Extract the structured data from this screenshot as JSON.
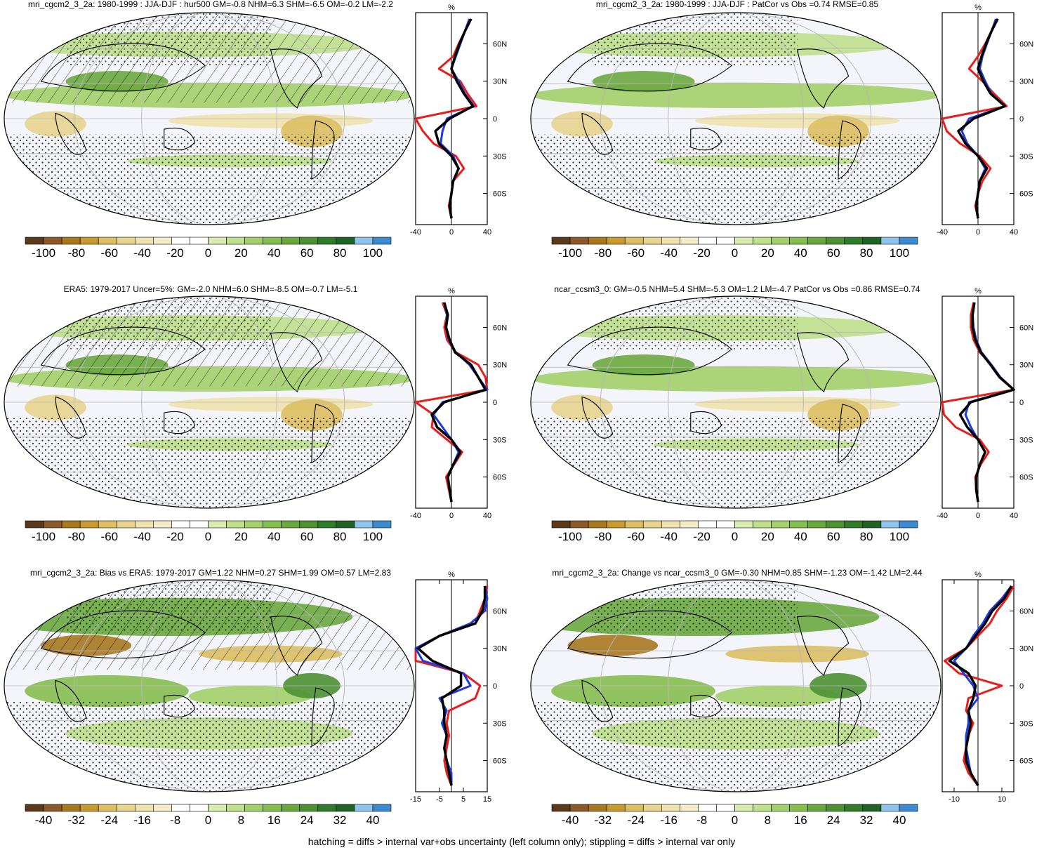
{
  "footer": "hatching = diffs > internal var+obs uncertainty (left column only); stippling = diffs > internal var only",
  "palette_abs": [
    "#5a3a1a",
    "#8c5a2a",
    "#a9781f",
    "#c99a2f",
    "#dcbf62",
    "#e8d48e",
    "#efe2ad",
    "#f4ebc8",
    "#ffffff",
    "#ffffff",
    "#d9ecb0",
    "#bfe08c",
    "#a3d06a",
    "#86be4f",
    "#6aa83f",
    "#4d9133",
    "#2f7a2b",
    "#1f6425",
    "#8ec5ec",
    "#3c8ad0"
  ],
  "palette_diff": [
    "#5a3a1a",
    "#8c5a2a",
    "#a9781f",
    "#c99a2f",
    "#dcbf62",
    "#e8d48e",
    "#efe2ad",
    "#f4ebc8",
    "#ffffff",
    "#ffffff",
    "#d9ecb0",
    "#bfe08c",
    "#a3d06a",
    "#86be4f",
    "#6aa83f",
    "#4d9133",
    "#2f7a2b",
    "#1f6425",
    "#8ec5ec",
    "#3c8ad0"
  ],
  "colors": {
    "red": "#e81e1e",
    "blue": "#1e3adc",
    "black": "#000000",
    "grid": "#b8b8b8"
  },
  "chart_data": [
    {
      "type": "heatmap",
      "id": "p1",
      "title": "mri_cgcm2_3_2a: 1980-1999 : JJA-DJF : hur500 GM=-0.8 NHM=6.3 SHM=-6.5 OM=-0.2 LM=-2.2",
      "colorbar_labels": [
        "-100",
        "-80",
        "-60",
        "-40",
        "-20",
        "0",
        "20",
        "40",
        "60",
        "80",
        "100"
      ],
      "profile": {
        "unit": "%",
        "xticks": [
          "-40",
          "0",
          "40"
        ],
        "xlim": [
          -40,
          40
        ],
        "yticks": [
          "60N",
          "30N",
          "0",
          "30S",
          "60S"
        ],
        "lat": [
          80,
          70,
          60,
          50,
          40,
          30,
          20,
          10,
          0,
          -10,
          -20,
          -30,
          -40,
          -50,
          -60,
          -70,
          -80
        ],
        "series": [
          {
            "color": "red",
            "values": [
              22,
              15,
              8,
              2,
              -14,
              10,
              18,
              28,
              -40,
              -32,
              -20,
              5,
              14,
              2,
              0,
              -3,
              0
            ]
          },
          {
            "color": "blue",
            "values": [
              20,
              15,
              10,
              5,
              0,
              8,
              15,
              25,
              -5,
              -10,
              -12,
              2,
              8,
              2,
              0,
              -2,
              0
            ]
          },
          {
            "color": "black",
            "values": [
              22,
              15,
              9,
              4,
              0,
              6,
              14,
              24,
              -2,
              -18,
              -14,
              0,
              8,
              2,
              0,
              -2,
              0
            ]
          }
        ]
      }
    },
    {
      "type": "heatmap",
      "id": "p2",
      "title": "mri_cgcm2_3_2a: 1980-1999 : JJA-DJF : PatCor vs Obs =0.74 RMSE=0.85",
      "colorbar_labels": [
        "-100",
        "-80",
        "-60",
        "-40",
        "-20",
        "0",
        "20",
        "40",
        "60",
        "80",
        "100"
      ],
      "profile": {
        "unit": "%",
        "xticks": [
          "-40",
          "0",
          "40"
        ],
        "xlim": [
          -40,
          40
        ],
        "yticks": [
          "60N",
          "30N",
          "0",
          "30S",
          "60S"
        ],
        "lat": [
          80,
          70,
          60,
          50,
          40,
          30,
          20,
          10,
          0,
          -10,
          -20,
          -30,
          -40,
          -50,
          -60,
          -70,
          -80
        ],
        "series": [
          {
            "color": "red",
            "values": [
              22,
              15,
              8,
              0,
              -10,
              5,
              18,
              32,
              -40,
              -35,
              -20,
              2,
              14,
              5,
              0,
              -3,
              0
            ]
          },
          {
            "color": "blue",
            "values": [
              20,
              15,
              10,
              5,
              2,
              8,
              15,
              30,
              -10,
              -18,
              -12,
              0,
              8,
              2,
              0,
              -2,
              0
            ]
          },
          {
            "color": "black",
            "values": [
              22,
              15,
              9,
              4,
              0,
              6,
              14,
              30,
              -5,
              -22,
              -14,
              0,
              10,
              2,
              0,
              -2,
              0
            ]
          }
        ]
      }
    },
    {
      "type": "heatmap",
      "id": "p3",
      "title": "ERA5: 1979-2017 Uncer=5%: GM=-2.0 NHM=6.0 SHM=-8.5 OM=-0.7 LM=-5.1",
      "colorbar_labels": [
        "-100",
        "-80",
        "-60",
        "-40",
        "-20",
        "0",
        "20",
        "40",
        "60",
        "80",
        "100"
      ],
      "profile": {
        "unit": "%",
        "xticks": [
          "-40",
          "0",
          "40"
        ],
        "xlim": [
          -40,
          40
        ],
        "yticks": [
          "60N",
          "30N",
          "0",
          "30S",
          "60S"
        ],
        "lat": [
          80,
          70,
          60,
          50,
          40,
          30,
          20,
          10,
          0,
          -10,
          -20,
          -30,
          -40,
          -50,
          -60,
          -70,
          -80
        ],
        "series": [
          {
            "color": "red",
            "values": [
              -10,
              -5,
              -8,
              -5,
              5,
              30,
              38,
              42,
              -40,
              -20,
              -22,
              -5,
              12,
              3,
              -6,
              -3,
              0
            ]
          },
          {
            "color": "blue",
            "values": [
              -8,
              -5,
              -6,
              -3,
              5,
              20,
              30,
              40,
              -10,
              -20,
              -10,
              0,
              8,
              2,
              -4,
              -2,
              0
            ]
          },
          {
            "color": "black",
            "values": [
              -8,
              -4,
              -6,
              -2,
              4,
              22,
              30,
              38,
              -8,
              -22,
              -16,
              0,
              10,
              2,
              -4,
              -2,
              0
            ]
          }
        ]
      }
    },
    {
      "type": "heatmap",
      "id": "p4",
      "title": "ncar_ccsm3_0: GM=-0.5 NHM=5.4 SHM=-5.3 OM=1.2 LM=-4.7 PatCor vs Obs =0.86 RMSE=0.74",
      "colorbar_labels": [
        "-100",
        "-80",
        "-60",
        "-40",
        "-20",
        "0",
        "20",
        "40",
        "60",
        "80",
        "100"
      ],
      "profile": {
        "unit": "%",
        "xticks": [
          "-40",
          "0",
          "40"
        ],
        "xlim": [
          -40,
          40
        ],
        "yticks": [
          "60N",
          "30N",
          "0",
          "30S",
          "60S"
        ],
        "lat": [
          80,
          70,
          60,
          50,
          40,
          30,
          20,
          10,
          0,
          -10,
          -20,
          -30,
          -40,
          -50,
          -60,
          -70,
          -80
        ],
        "series": [
          {
            "color": "red",
            "values": [
              -5,
              -8,
              -8,
              -5,
              2,
              15,
              25,
              40,
              -40,
              -38,
              -25,
              2,
              12,
              3,
              -3,
              -2,
              0
            ]
          },
          {
            "color": "blue",
            "values": [
              -4,
              -6,
              -5,
              -2,
              4,
              15,
              25,
              40,
              -10,
              -14,
              -8,
              0,
              8,
              2,
              -2,
              -2,
              0
            ]
          },
          {
            "color": "black",
            "values": [
              -4,
              -6,
              -6,
              -3,
              3,
              14,
              24,
              40,
              -8,
              -20,
              -12,
              0,
              8,
              2,
              -2,
              -2,
              0
            ]
          }
        ]
      }
    },
    {
      "type": "heatmap",
      "id": "p5",
      "title": "mri_cgcm2_3_2a: Bias vs ERA5: 1979-2017 GM=1.22 NHM=0.27 SHM=1.99 OM=0.57 LM=2.83",
      "colorbar_labels": [
        "-40",
        "-32",
        "-24",
        "-16",
        "-8",
        "0",
        "8",
        "16",
        "24",
        "32",
        "40"
      ],
      "profile": {
        "unit": "%",
        "xticks": [
          "-15",
          "-5",
          "5",
          "15"
        ],
        "xlim": [
          -15,
          15
        ],
        "yticks": [
          "60N",
          "30N",
          "0",
          "30S",
          "60S"
        ],
        "lat": [
          80,
          70,
          60,
          50,
          40,
          30,
          20,
          10,
          0,
          -10,
          -20,
          -30,
          -40,
          -50,
          -60,
          -70,
          -80
        ],
        "series": [
          {
            "color": "red",
            "values": [
              15,
              14,
              12,
              10,
              -5,
              -15,
              -15,
              5,
              12,
              10,
              -1,
              -2,
              -1,
              -2,
              -3,
              -2,
              0
            ]
          },
          {
            "color": "blue",
            "values": [
              14,
              15,
              14,
              8,
              -5,
              -15,
              -12,
              5,
              8,
              -5,
              -2,
              -4,
              -2,
              -3,
              -2,
              0,
              0
            ]
          },
          {
            "color": "black",
            "values": [
              14,
              14,
              13,
              10,
              -5,
              -14,
              -8,
              4,
              4,
              -4,
              -3,
              -3,
              -2,
              -3,
              -2,
              -1,
              0
            ]
          }
        ]
      }
    },
    {
      "type": "heatmap",
      "id": "p6",
      "title": "mri_cgcm2_3_2a: Change vs ncar_ccsm3_0 GM=-0.30 NHM=0.85 SHM=-1.23 OM=-1.42 LM=2.44",
      "colorbar_labels": [
        "-40",
        "-32",
        "-24",
        "-16",
        "-8",
        "0",
        "8",
        "16",
        "24",
        "32",
        "40"
      ],
      "profile": {
        "unit": "%",
        "xticks": [
          "-10",
          "10"
        ],
        "xlim": [
          -15,
          15
        ],
        "yticks": [
          "60N",
          "30N",
          "0",
          "30S",
          "60S"
        ],
        "lat": [
          80,
          70,
          60,
          50,
          40,
          30,
          20,
          10,
          0,
          -10,
          -20,
          -30,
          -40,
          -50,
          -60,
          -70,
          -80
        ],
        "series": [
          {
            "color": "red",
            "values": [
              15,
              12,
              8,
              5,
              0,
              -5,
              -14,
              -8,
              10,
              -4,
              -5,
              -2,
              -4,
              -5,
              -6,
              -4,
              0
            ]
          },
          {
            "color": "blue",
            "values": [
              14,
              10,
              5,
              2,
              -2,
              -5,
              -10,
              -6,
              -2,
              0,
              -4,
              -4,
              -5,
              -5,
              -4,
              -3,
              0
            ]
          },
          {
            "color": "black",
            "values": [
              14,
              11,
              6,
              3,
              -1,
              -5,
              -12,
              -4,
              -1,
              -2,
              -4,
              -3,
              -4,
              -5,
              -5,
              -3,
              0
            ]
          }
        ]
      }
    }
  ]
}
